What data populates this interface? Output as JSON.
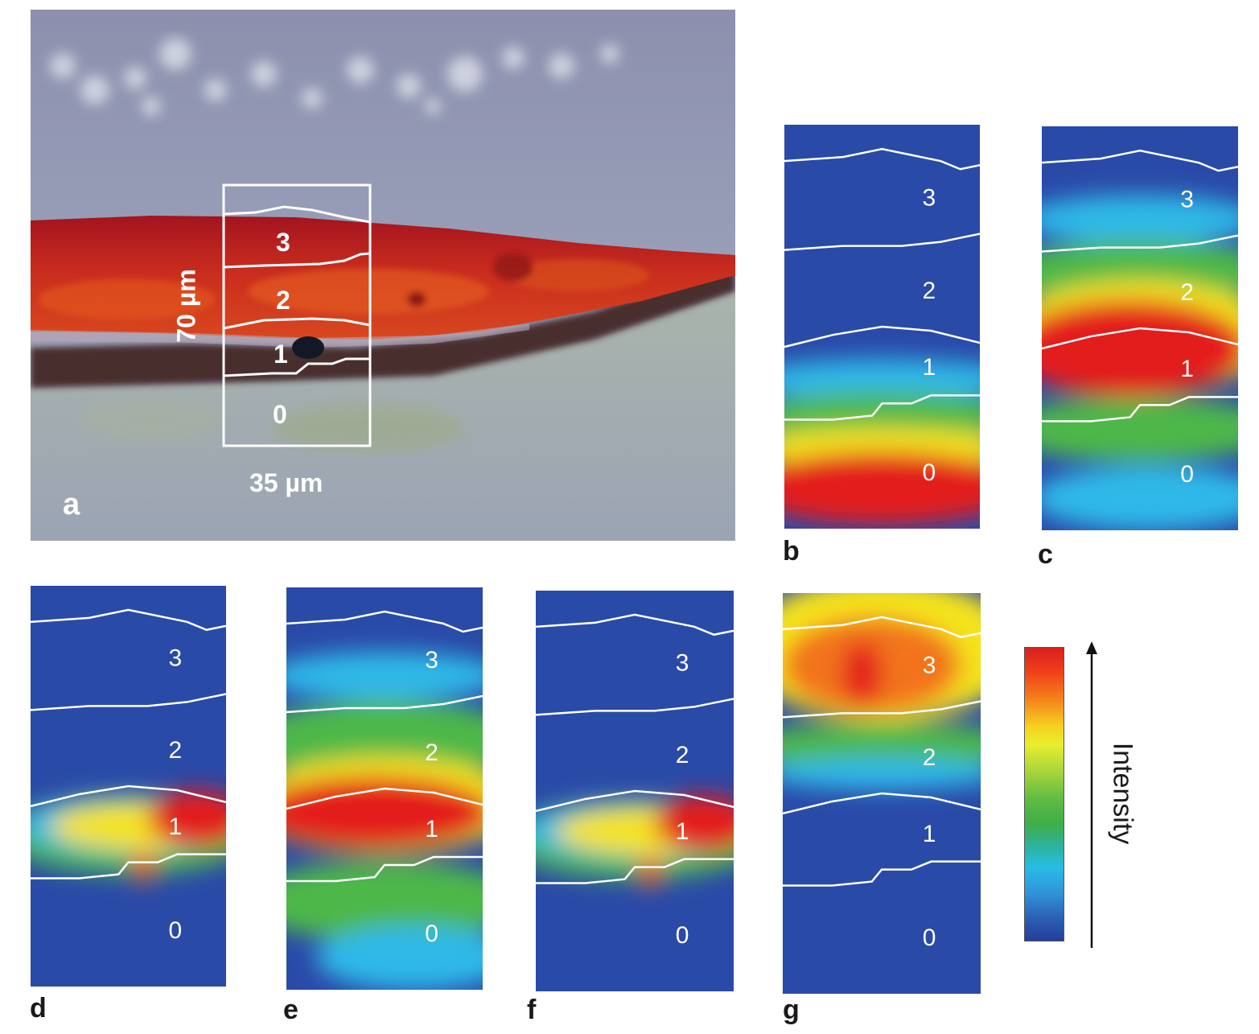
{
  "panel_a": {
    "letter": "a",
    "layers": [
      "3",
      "2",
      "1",
      "0"
    ],
    "height_label": "70 µm",
    "width_label": "35 µm"
  },
  "maps": [
    {
      "letter": "b",
      "layers": [
        "3",
        "2",
        "1",
        "0"
      ]
    },
    {
      "letter": "c",
      "layers": [
        "3",
        "2",
        "1",
        "0"
      ]
    },
    {
      "letter": "d",
      "layers": [
        "3",
        "2",
        "1",
        "0"
      ]
    },
    {
      "letter": "e",
      "layers": [
        "3",
        "2",
        "1",
        "0"
      ]
    },
    {
      "letter": "f",
      "layers": [
        "3",
        "2",
        "1",
        "0"
      ]
    },
    {
      "letter": "g",
      "layers": [
        "3",
        "2",
        "1",
        "0"
      ]
    }
  ],
  "colorbar": {
    "label": "Intensity",
    "colors": [
      "#d91e1e",
      "#f4861b",
      "#f6d21f",
      "#5dbb43",
      "#28bde6",
      "#263e9b"
    ]
  },
  "colors": {
    "map_background": "#2a4aa8",
    "outline": "#ffffff"
  }
}
